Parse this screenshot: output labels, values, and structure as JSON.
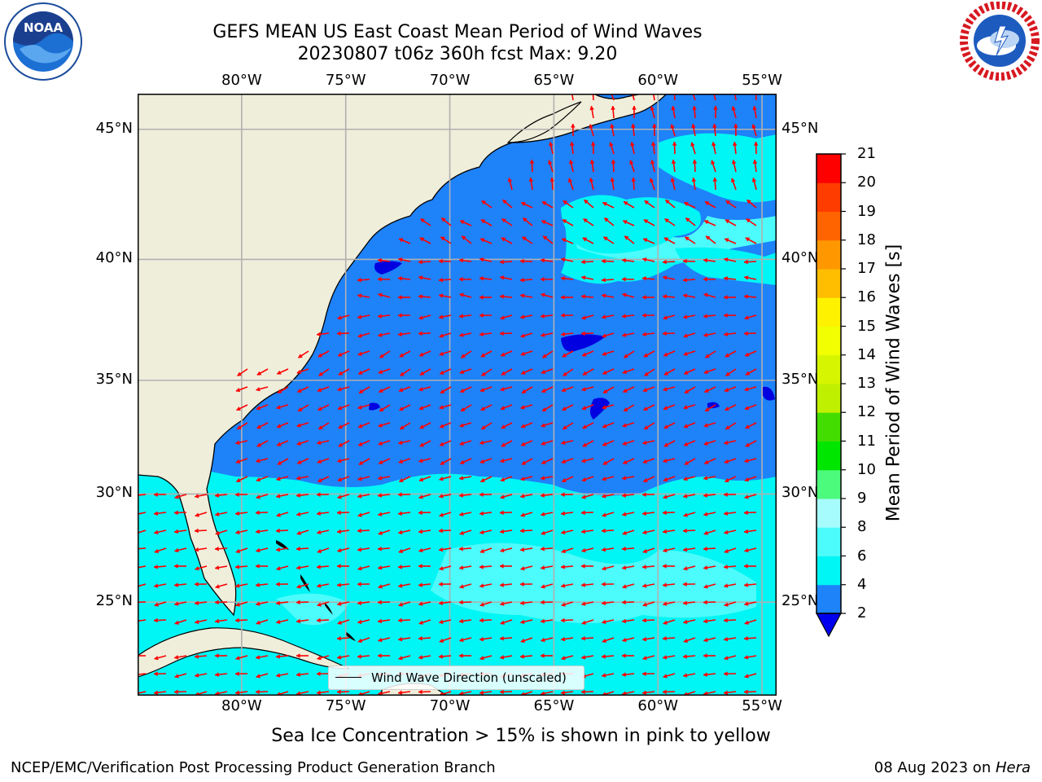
{
  "header": {
    "title_line1": "GEFS MEAN US East Coast Mean Period of Wind Waves",
    "title_line2": "20230807 t06z 360h fcst   Max: 9.20"
  },
  "logos": {
    "left": {
      "name": "noaa-logo",
      "text": "NOAA"
    },
    "right": {
      "name": "nws-logo",
      "text": "NATIONAL WEATHER SERVICE"
    }
  },
  "map": {
    "lon_range": [
      -85,
      -54.3
    ],
    "lat_range": [
      20.5,
      46.3
    ],
    "lon_ticks": [
      -80,
      -75,
      -70,
      -65,
      -60,
      -55
    ],
    "lon_labels": [
      "80°W",
      "75°W",
      "70°W",
      "65°W",
      "60°W",
      "55°W"
    ],
    "lat_ticks": [
      25,
      30,
      35,
      40,
      45
    ],
    "lat_labels": [
      "25°N",
      "30°N",
      "35°N",
      "40°N",
      "45°N"
    ],
    "grid": true,
    "colors": {
      "land": "#efeedb",
      "band_2_4": "#1e82f9",
      "band_4_6": "#00f5f5",
      "band_6_8": "#4cfbfb",
      "band_lt2": "#0000e0",
      "arrow": "#ff0000"
    }
  },
  "legend": {
    "label": "Wind Wave Direction (unscaled)"
  },
  "colorbar": {
    "label": "Mean Period of Wind Waves [s]",
    "ticks": [
      "2",
      "4",
      "6",
      "8",
      "9",
      "10",
      "11",
      "12",
      "13",
      "14",
      "15",
      "16",
      "17",
      "18",
      "19",
      "20",
      "21"
    ],
    "bands": [
      {
        "from": 2,
        "to": 4,
        "color": "#1e82f9"
      },
      {
        "from": 4,
        "to": 6,
        "color": "#00f5f5"
      },
      {
        "from": 6,
        "to": 8,
        "color": "#4cfbfb"
      },
      {
        "from": 8,
        "to": 9,
        "color": "#a6fcfc"
      },
      {
        "from": 9,
        "to": 10,
        "color": "#4cfa7c"
      },
      {
        "from": 10,
        "to": 11,
        "color": "#00e600"
      },
      {
        "from": 11,
        "to": 12,
        "color": "#44dd00"
      },
      {
        "from": 12,
        "to": 13,
        "color": "#bff000"
      },
      {
        "from": 13,
        "to": 14,
        "color": "#d5f500"
      },
      {
        "from": 14,
        "to": 15,
        "color": "#f1ff00"
      },
      {
        "from": 15,
        "to": 16,
        "color": "#fff200"
      },
      {
        "from": 16,
        "to": 17,
        "color": "#ffbe00"
      },
      {
        "from": 17,
        "to": 18,
        "color": "#ff9800"
      },
      {
        "from": 18,
        "to": 19,
        "color": "#ff6400"
      },
      {
        "from": 19,
        "to": 20,
        "color": "#ff3c00"
      },
      {
        "from": 20,
        "to": 21,
        "color": "#ff0000"
      }
    ],
    "under_color": "#0000ee"
  },
  "footer": {
    "sea_ice_note": "Sea Ice Concentration > 15% is shown in pink to yellow",
    "branch": "NCEP/EMC/Verification Post Processing Product Generation Branch",
    "date": "08 Aug 2023 on ",
    "host": "Hera"
  }
}
